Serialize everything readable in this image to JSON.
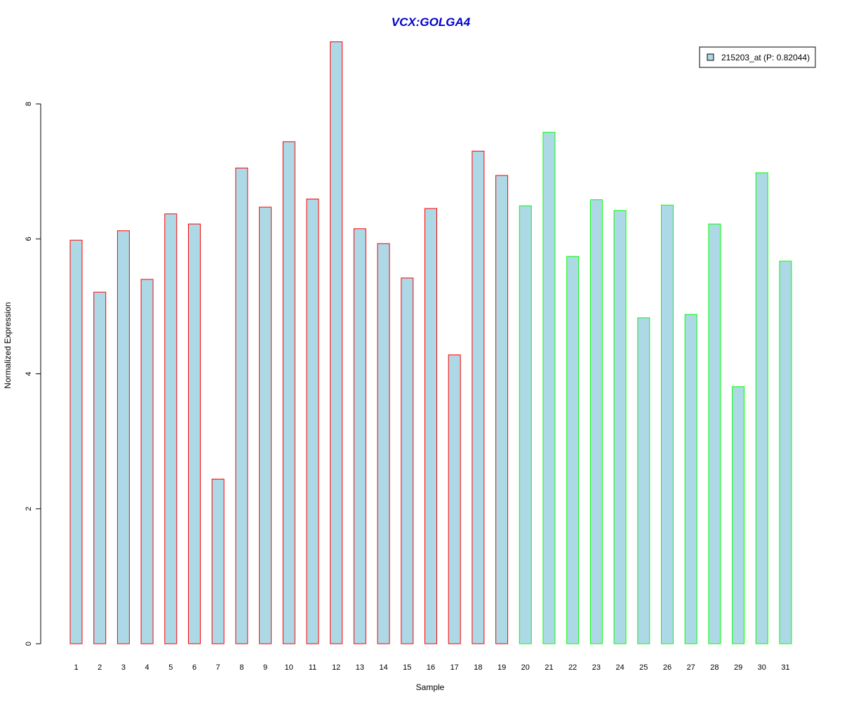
{
  "chart_data": {
    "type": "bar",
    "title": "VCX:GOLGA4",
    "xlabel": "Sample",
    "ylabel": "Normalized Expression",
    "ylim": [
      0,
      8.9
    ],
    "yticks": [
      0,
      2,
      4,
      6,
      8
    ],
    "grid": false,
    "legend_position": "top-right",
    "fill_color": "#add8e6",
    "categories": [
      "1",
      "2",
      "3",
      "4",
      "5",
      "6",
      "7",
      "8",
      "9",
      "10",
      "11",
      "12",
      "13",
      "14",
      "15",
      "16",
      "17",
      "18",
      "19",
      "20",
      "21",
      "22",
      "23",
      "24",
      "25",
      "26",
      "27",
      "28",
      "29",
      "30",
      "31"
    ],
    "series": [
      {
        "name": "215203_at (P: 0.82044)",
        "values": [
          5.98,
          5.21,
          6.12,
          5.4,
          6.37,
          6.22,
          2.44,
          7.05,
          6.47,
          7.44,
          6.59,
          8.92,
          6.15,
          5.93,
          5.42,
          6.45,
          4.28,
          7.3,
          6.94,
          6.49,
          7.58,
          5.74,
          6.58,
          6.42,
          4.83,
          6.5,
          4.88,
          6.22,
          3.81,
          6.98,
          5.67
        ]
      }
    ],
    "groups": [
      {
        "border_color": "#ff0000",
        "samples": [
          "1",
          "2",
          "3",
          "4",
          "5",
          "6",
          "7",
          "8",
          "9",
          "10",
          "11",
          "12",
          "13",
          "14",
          "15",
          "16",
          "17",
          "18",
          "19"
        ]
      },
      {
        "border_color": "#00ff00",
        "samples": [
          "20",
          "21",
          "22",
          "23",
          "24",
          "25",
          "26",
          "27",
          "28",
          "29",
          "30",
          "31"
        ]
      }
    ]
  }
}
